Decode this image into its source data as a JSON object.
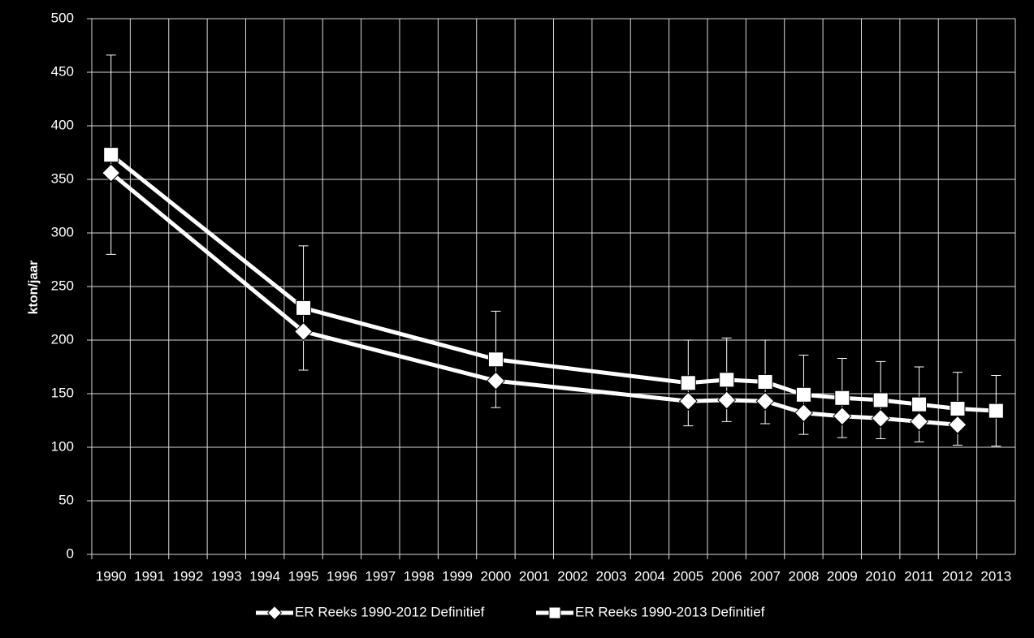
{
  "chart_data": {
    "type": "line",
    "y_label": "kton/jaar",
    "x": [
      1990,
      1995,
      2000,
      2005,
      2006,
      2007,
      2008,
      2009,
      2010,
      2011,
      2012,
      2013
    ],
    "xlim": [
      1989.5,
      2013.5
    ],
    "xticks": [
      1990,
      1991,
      1992,
      1993,
      1994,
      1995,
      1996,
      1997,
      1998,
      1999,
      2000,
      2001,
      2002,
      2003,
      2004,
      2005,
      2006,
      2007,
      2008,
      2009,
      2010,
      2011,
      2012,
      2013
    ],
    "ylim": [
      0,
      500
    ],
    "yticks": [
      0,
      50,
      100,
      150,
      200,
      250,
      300,
      350,
      400,
      450,
      500
    ],
    "grid": true,
    "legend": "bottom",
    "series": [
      {
        "name": "ER Reeks 1990-2012 Definitief",
        "color": "#ffffff",
        "marker": "diamond",
        "values": [
          356,
          208,
          162,
          143,
          144,
          143,
          132,
          129,
          127,
          124,
          121,
          null
        ]
      },
      {
        "name": "ER Reeks 1990-2013 Definitief",
        "color": "#ffffff",
        "marker": "square",
        "values": [
          373,
          230,
          182,
          160,
          163,
          161,
          149,
          146,
          144,
          140,
          136,
          134
        ],
        "errors": [
          93,
          58,
          45,
          40,
          39,
          39,
          37,
          37,
          36,
          35,
          34,
          33
        ]
      }
    ]
  }
}
